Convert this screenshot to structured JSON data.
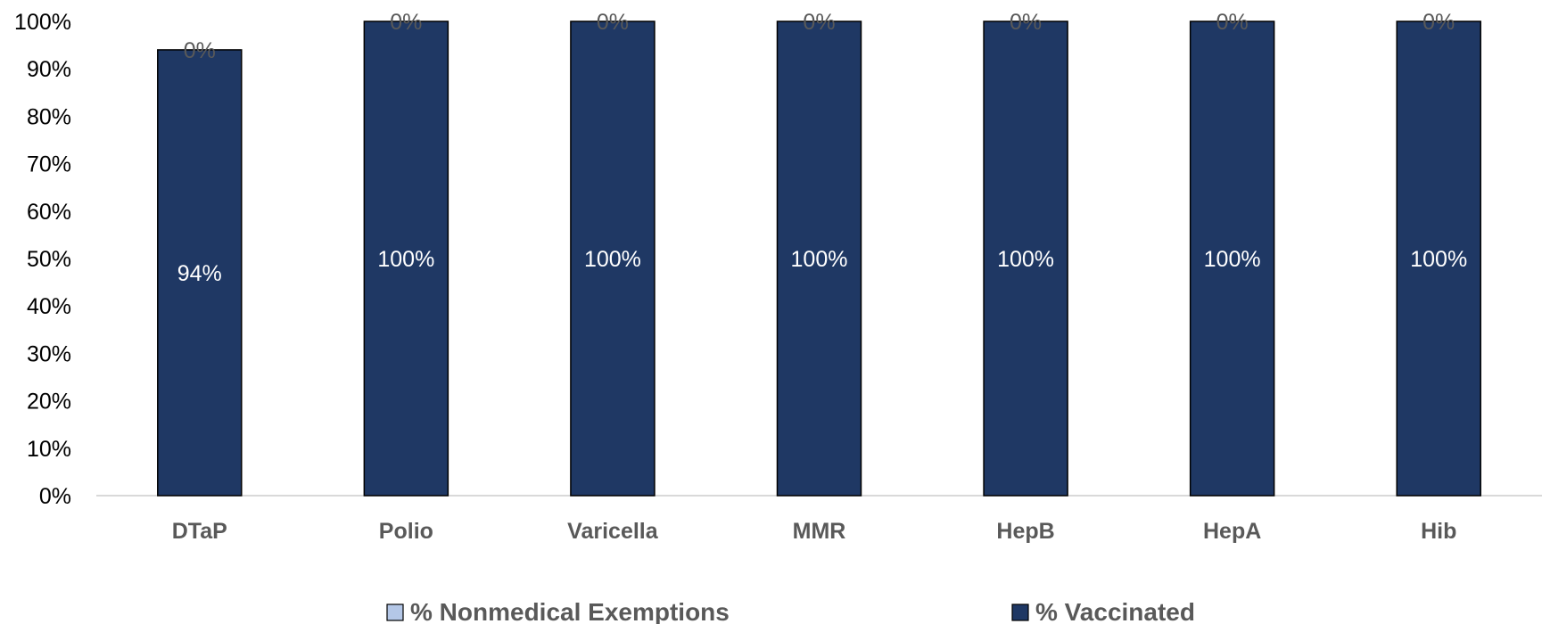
{
  "chart_data": {
    "type": "bar",
    "stacked": true,
    "categories": [
      "DTaP",
      "Polio",
      "Varicella",
      "MMR",
      "HepB",
      "HepA",
      "Hib"
    ],
    "series": [
      {
        "name": "% Vaccinated",
        "values": [
          94,
          100,
          100,
          100,
          100,
          100,
          100
        ],
        "labels": [
          "94%",
          "100%",
          "100%",
          "100%",
          "100%",
          "100%",
          "100%"
        ],
        "color": "#1f3864"
      },
      {
        "name": "% Nonmedical Exemptions",
        "values": [
          0,
          0,
          0,
          0,
          0,
          0,
          0
        ],
        "labels": [
          "0%",
          "0%",
          "0%",
          "0%",
          "0%",
          "0%",
          "0%"
        ],
        "color": "#b4c7e7"
      }
    ],
    "legend_order": [
      "% Nonmedical Exemptions",
      "% Vaccinated"
    ],
    "y_ticks": [
      "0%",
      "10%",
      "20%",
      "30%",
      "40%",
      "50%",
      "60%",
      "70%",
      "80%",
      "90%",
      "100%"
    ],
    "ylim": [
      0,
      100
    ],
    "title": "",
    "xlabel": "",
    "ylabel": "",
    "grid": false,
    "legend_position": "bottom"
  }
}
